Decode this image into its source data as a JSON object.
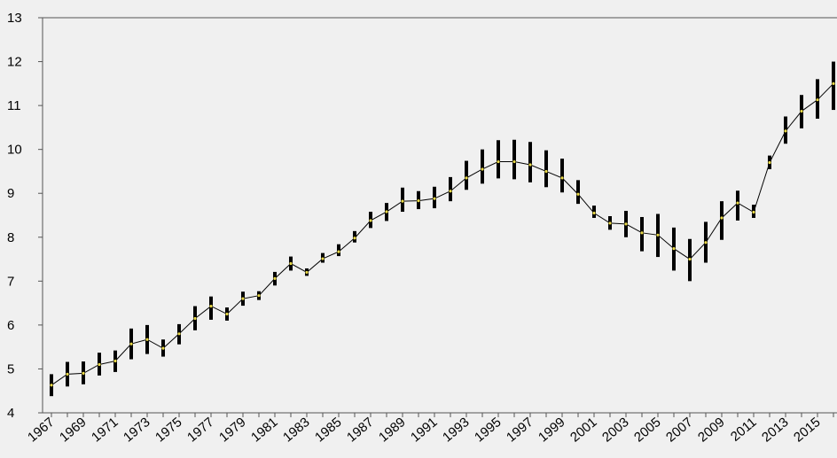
{
  "chart_data": {
    "type": "line",
    "title": "",
    "xlabel": "",
    "ylabel": "",
    "ylim": [
      4,
      13
    ],
    "y_ticks": [
      4,
      5,
      6,
      7,
      8,
      9,
      10,
      11,
      12,
      13
    ],
    "x_tick_labels": [
      "1967",
      "1969",
      "1971",
      "1973",
      "1975",
      "1977",
      "1979",
      "1981",
      "1983",
      "1985",
      "1987",
      "1989",
      "1991",
      "1993",
      "1995",
      "1997",
      "1999",
      "2001",
      "2003",
      "2005",
      "2007",
      "2009",
      "2011",
      "2013",
      "2015"
    ],
    "grid": false,
    "legend": "none",
    "x": [
      1967,
      1968,
      1969,
      1970,
      1971,
      1972,
      1973,
      1974,
      1975,
      1976,
      1977,
      1978,
      1979,
      1980,
      1981,
      1982,
      1983,
      1984,
      1985,
      1986,
      1987,
      1988,
      1989,
      1990,
      1991,
      1992,
      1993,
      1994,
      1995,
      1996,
      1997,
      1998,
      1999,
      2000,
      2001,
      2002,
      2003,
      2004,
      2005,
      2006,
      2007,
      2008,
      2009,
      2010,
      2011,
      2012,
      2013,
      2014,
      2015,
      2016
    ],
    "values": [
      4.63,
      4.88,
      4.9,
      5.1,
      5.18,
      5.57,
      5.67,
      5.47,
      5.8,
      6.15,
      6.43,
      6.25,
      6.6,
      6.67,
      7.06,
      7.4,
      7.2,
      7.51,
      7.67,
      7.98,
      8.38,
      8.58,
      8.82,
      8.83,
      8.88,
      9.05,
      9.35,
      9.55,
      9.72,
      9.72,
      9.65,
      9.5,
      9.35,
      8.98,
      8.55,
      8.32,
      8.3,
      8.1,
      8.05,
      7.74,
      7.5,
      7.88,
      8.44,
      8.78,
      8.57,
      9.7,
      10.42,
      10.87,
      11.13,
      11.5
    ],
    "error_bars": {
      "low": [
        4.38,
        4.6,
        4.65,
        4.85,
        4.93,
        5.22,
        5.34,
        5.28,
        5.56,
        5.88,
        6.12,
        6.1,
        6.44,
        6.57,
        6.9,
        7.24,
        7.12,
        7.42,
        7.57,
        7.88,
        8.21,
        8.37,
        8.58,
        8.64,
        8.66,
        8.82,
        9.08,
        9.22,
        9.34,
        9.32,
        9.25,
        9.14,
        9.02,
        8.76,
        8.44,
        8.17,
        8.0,
        7.68,
        7.55,
        7.24,
        7.0,
        7.42,
        7.94,
        8.38,
        8.44,
        9.55,
        10.13,
        10.48,
        10.7,
        10.9
      ],
      "high": [
        4.88,
        5.16,
        5.17,
        5.37,
        5.42,
        5.92,
        6.0,
        5.67,
        6.02,
        6.43,
        6.65,
        6.4,
        6.76,
        6.77,
        7.21,
        7.56,
        7.29,
        7.64,
        7.84,
        8.14,
        8.58,
        8.78,
        9.13,
        9.05,
        9.15,
        9.37,
        9.74,
        10.0,
        10.21,
        10.22,
        10.17,
        9.98,
        9.79,
        9.3,
        8.72,
        8.48,
        8.6,
        8.46,
        8.53,
        8.22,
        7.96,
        8.35,
        8.82,
        9.06,
        8.74,
        9.86,
        10.75,
        11.24,
        11.6,
        12.0
      ]
    },
    "colors": {
      "line": "#000000",
      "markers": "#e8d848",
      "error_bars": "#000000",
      "background": "#f0f0f0"
    }
  }
}
